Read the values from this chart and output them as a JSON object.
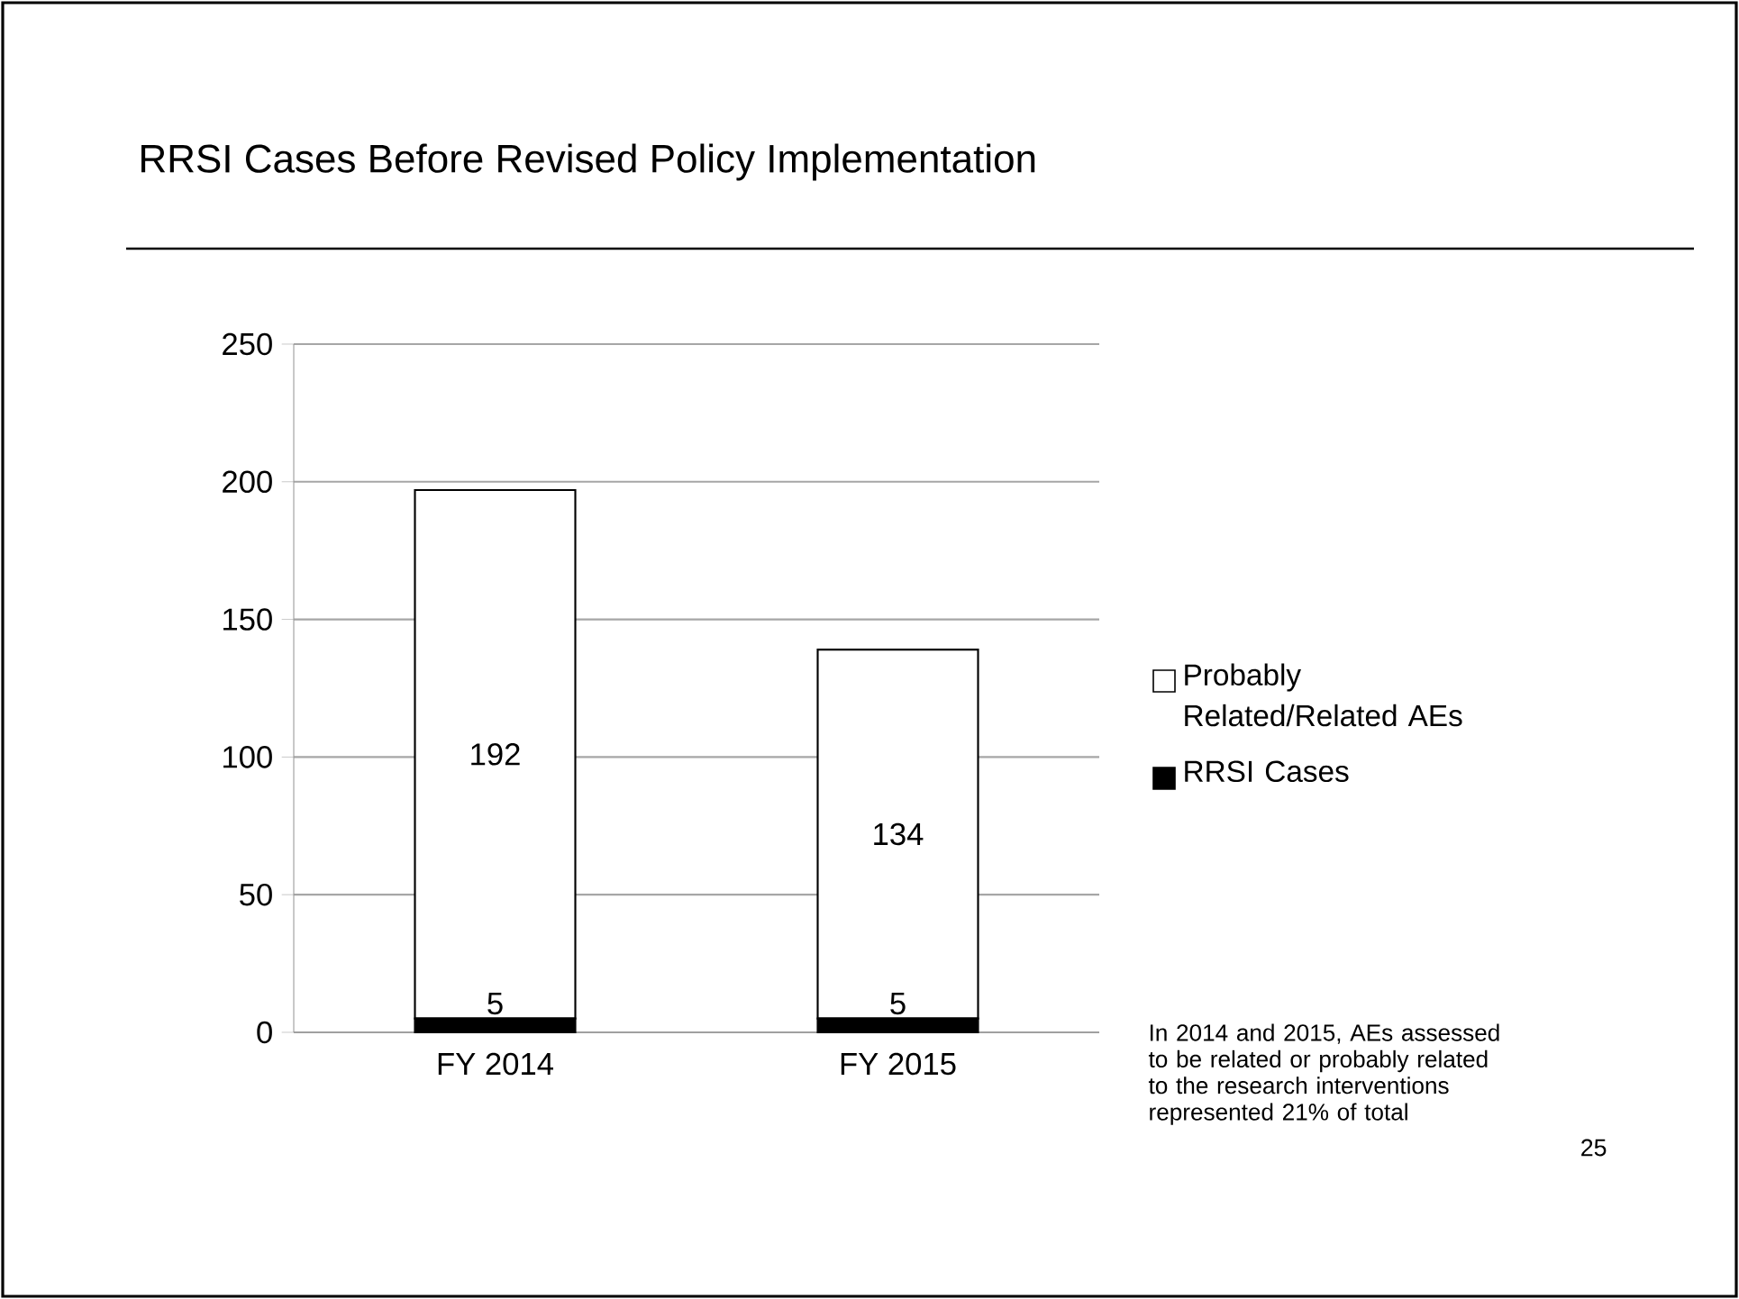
{
  "chart_data": {
    "type": "bar",
    "title": "RRSI Cases Before Revised Policy Implementation",
    "categories": [
      "FY 2014",
      "FY 2015"
    ],
    "series": [
      {
        "name": "RRSI Cases",
        "color": "#000000",
        "values": [
          5,
          5
        ]
      },
      {
        "name": "Probably Related/Related AEs",
        "color": "#ffffff",
        "values": [
          192,
          134
        ]
      }
    ],
    "stacked": true,
    "data_labels": true,
    "ylim": [
      0,
      250
    ],
    "yticks": [
      0,
      50,
      100,
      150,
      200,
      250
    ],
    "grid": "y",
    "legend": "right",
    "annotations": [
      "In 2014 and 2015, AEs assessed to be related or probably related to the research interventions represented 21% of total",
      "25"
    ]
  }
}
